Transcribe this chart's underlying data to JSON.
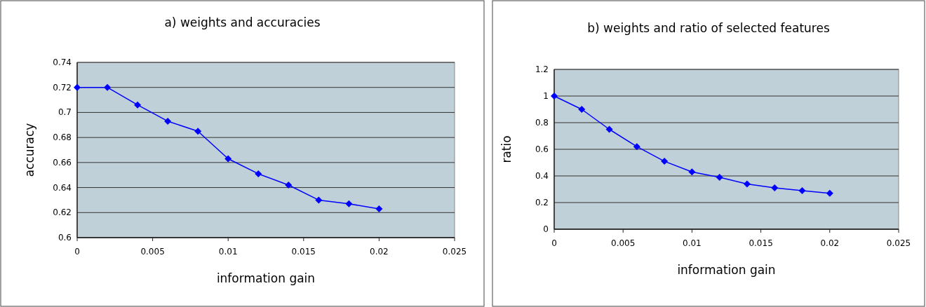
{
  "chart_data": [
    {
      "type": "line",
      "title": "a) weights and accuracies",
      "xlabel": "information gain",
      "ylabel": "accuracy",
      "x": [
        0,
        0.002,
        0.004,
        0.006,
        0.008,
        0.01,
        0.012,
        0.014,
        0.016,
        0.018,
        0.02
      ],
      "series": [
        {
          "color": "#0000ff",
          "values": [
            0.72,
            0.72,
            0.706,
            0.693,
            0.685,
            0.663,
            0.651,
            0.642,
            0.63,
            0.627,
            0.623
          ]
        }
      ],
      "xlim": [
        0,
        0.025
      ],
      "xticks": [
        0,
        0.005,
        0.01,
        0.015,
        0.02,
        0.025
      ],
      "ylim": [
        0.6,
        0.74
      ],
      "yticks": [
        0.6,
        0.62,
        0.64,
        0.66,
        0.68,
        0.7,
        0.72,
        0.74
      ],
      "grid": "y",
      "marker": "diamond"
    },
    {
      "type": "line",
      "title": "b) weights and ratio of selected features",
      "xlabel": "information gain",
      "ylabel": "ratio",
      "x": [
        0,
        0.002,
        0.004,
        0.006,
        0.008,
        0.01,
        0.012,
        0.014,
        0.016,
        0.018,
        0.02
      ],
      "series": [
        {
          "color": "#0000ff",
          "values": [
            1,
            0.9,
            0.75,
            0.62,
            0.51,
            0.43,
            0.39,
            0.34,
            0.31,
            0.29,
            0.27
          ]
        }
      ],
      "xlim": [
        0,
        0.025
      ],
      "xticks": [
        0,
        0.005,
        0.01,
        0.015,
        0.02,
        0.025
      ],
      "ylim": [
        0,
        1.2
      ],
      "yticks": [
        0,
        0.2,
        0.4,
        0.6,
        0.8,
        1,
        1.2
      ],
      "grid": "y",
      "marker": "diamond"
    }
  ]
}
